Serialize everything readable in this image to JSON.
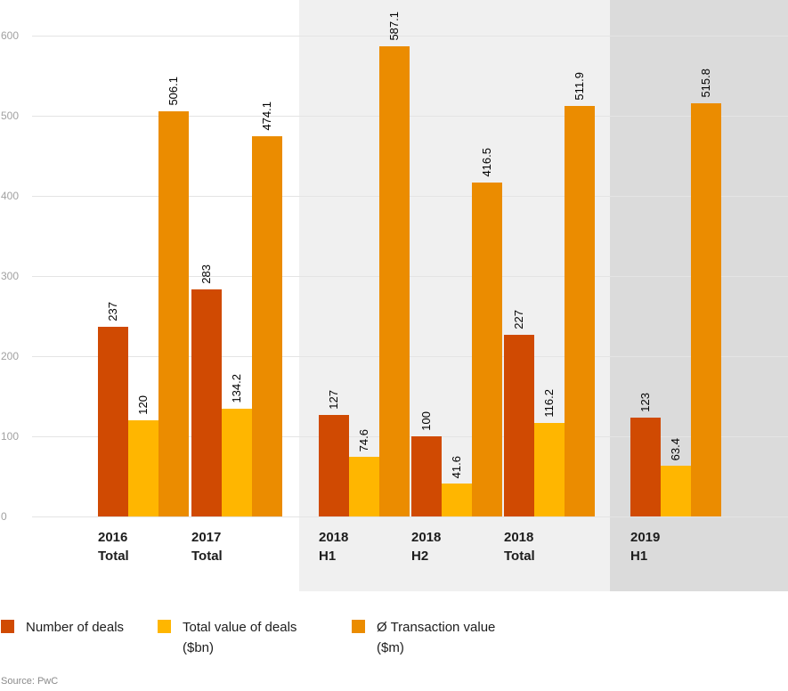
{
  "chart_data": {
    "type": "bar",
    "categories": [
      {
        "line1": "2016",
        "line2": "Total"
      },
      {
        "line1": "2017",
        "line2": "Total"
      },
      {
        "line1": "2018",
        "line2": "H1"
      },
      {
        "line1": "2018",
        "line2": "H2"
      },
      {
        "line1": "2018",
        "line2": "Total"
      },
      {
        "line1": "2019",
        "line2": "H1"
      }
    ],
    "series": [
      {
        "name": "Number of deals",
        "color": "#d04a02",
        "values": [
          237,
          283,
          127,
          100,
          227,
          123
        ],
        "labels": [
          "237",
          "283",
          "127",
          "100",
          "227",
          "123"
        ]
      },
      {
        "name": "Total value of deals ($bn)",
        "color": "#ffb600",
        "values": [
          120,
          134.2,
          74.6,
          41.6,
          116.2,
          63.4
        ],
        "labels": [
          "120",
          "134.2",
          "74.6",
          "41.6",
          "116.2",
          "63.4"
        ]
      },
      {
        "name": "Ø Transaction value ($m)",
        "color": "#eb8c00",
        "values": [
          506.1,
          474.1,
          587.1,
          416.5,
          511.9,
          515.8
        ],
        "labels": [
          "506.1",
          "474.1",
          "587.1",
          "416.5",
          "511.9",
          "515.8"
        ]
      }
    ],
    "y_axis": {
      "ticks": [
        0,
        100,
        200,
        300,
        400,
        500,
        600
      ],
      "tick_labels": [
        "0",
        "100",
        "200",
        "300",
        "400",
        "500",
        "600"
      ],
      "ylim": [
        0,
        600
      ],
      "grid": true
    },
    "background_bands": [
      {
        "label": "2018",
        "categories": [
          "2018 H1",
          "2018 H2",
          "2018 Total"
        ],
        "color": "#f0f0f0"
      },
      {
        "label": "2019",
        "categories": [
          "2019 H1"
        ],
        "color": "#dbdbdb"
      }
    ],
    "legend": {
      "position": "bottom-left",
      "items": [
        {
          "lines": [
            "Number of deals"
          ],
          "color": "#d04a02"
        },
        {
          "lines": [
            "Total value of deals",
            "($bn)"
          ],
          "color": "#ffb600"
        },
        {
          "lines": [
            "Ø Transaction value",
            "($m)"
          ],
          "color": "#eb8c00"
        }
      ]
    },
    "source": "Source: PwC"
  }
}
